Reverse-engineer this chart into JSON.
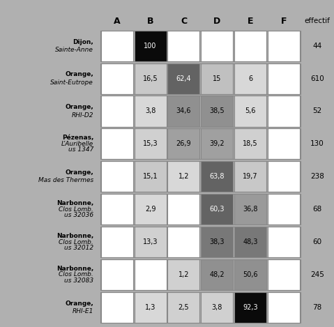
{
  "columns": [
    "A",
    "B",
    "C",
    "D",
    "E",
    "F"
  ],
  "rows": [
    {
      "label_line1": "Dijon,",
      "label_line2": "Sainte-Anne",
      "label_italic": true,
      "effectif": "44",
      "values": [
        null,
        100,
        null,
        null,
        null,
        null
      ],
      "colors": [
        "white",
        "#0a0a0a",
        "white",
        "white",
        "white",
        "white"
      ],
      "text_colors": [
        "black",
        "white",
        "black",
        "black",
        "black",
        "black"
      ]
    },
    {
      "label_line1": "Orange,",
      "label_line2": "Saint-Eutrope",
      "label_italic": true,
      "effectif": "610",
      "values": [
        null,
        "16,5",
        "62,4",
        "15",
        "6",
        null
      ],
      "colors": [
        "white",
        "#c8c8c8",
        "#636363",
        "#c0c0c0",
        "#d8d8d8",
        "white"
      ],
      "text_colors": [
        "black",
        "black",
        "white",
        "black",
        "black",
        "black"
      ]
    },
    {
      "label_line1": "Orange,",
      "label_line2": "RHI-D2",
      "label_italic": true,
      "effectif": "52",
      "values": [
        null,
        "3,8",
        "34,6",
        "38,5",
        "5,6",
        null
      ],
      "colors": [
        "white",
        "#d8d8d8",
        "#909090",
        "#909090",
        "#d8d8d8",
        "white"
      ],
      "text_colors": [
        "black",
        "black",
        "black",
        "black",
        "black",
        "black"
      ]
    },
    {
      "label_line1": "Pézenas,",
      "label_line2": "L’Auribelle",
      "label_line3": "us 1347",
      "label_italic": true,
      "effectif": "130",
      "values": [
        null,
        "15,3",
        "26,9",
        "39,2",
        "18,5",
        null
      ],
      "colors": [
        "white",
        "#d0d0d0",
        "#a0a0a0",
        "#a0a0a0",
        "#d0d0d0",
        "white"
      ],
      "text_colors": [
        "black",
        "black",
        "black",
        "black",
        "black",
        "black"
      ]
    },
    {
      "label_line1": "Orange,",
      "label_line2": "Mas des Thermes",
      "label_italic": true,
      "effectif": "238",
      "values": [
        null,
        "15,1",
        "1,2",
        "63,8",
        "19,7",
        null
      ],
      "colors": [
        "white",
        "#c8c8c8",
        "#d8d8d8",
        "#636363",
        "#c8c8c8",
        "white"
      ],
      "text_colors": [
        "black",
        "black",
        "black",
        "white",
        "black",
        "black"
      ]
    },
    {
      "label_line1": "Narbonne,",
      "label_line2": "Clos Lomb.",
      "label_line3": "us 32036",
      "label_italic": true,
      "effectif": "68",
      "values": [
        null,
        "2,9",
        null,
        "60,3",
        "36,8",
        null
      ],
      "colors": [
        "white",
        "#d8d8d8",
        "white",
        "#636363",
        "#9a9a9a",
        "white"
      ],
      "text_colors": [
        "black",
        "black",
        "black",
        "white",
        "black",
        "black"
      ]
    },
    {
      "label_line1": "Narbonne,",
      "label_line2": "Clos Lomb.",
      "label_line3": "us 32012",
      "label_italic": true,
      "effectif": "60",
      "values": [
        null,
        "13,3",
        null,
        "38,3",
        "48,3",
        null
      ],
      "colors": [
        "white",
        "#d0d0d0",
        "white",
        "#787878",
        "#787878",
        "white"
      ],
      "text_colors": [
        "black",
        "black",
        "black",
        "black",
        "black",
        "black"
      ]
    },
    {
      "label_line1": "Narbonne,",
      "label_line2": "Clos Lomb.",
      "label_line3": "us 32083",
      "label_italic": true,
      "effectif": "245",
      "values": [
        null,
        null,
        "1,2",
        "48,2",
        "50,6",
        null
      ],
      "colors": [
        "white",
        "white",
        "#d0d0d0",
        "#909090",
        "#909090",
        "white"
      ],
      "text_colors": [
        "black",
        "black",
        "black",
        "black",
        "black",
        "black"
      ]
    },
    {
      "label_line1": "Orange,",
      "label_line2": "RHI-E1",
      "label_italic": true,
      "effectif": "78",
      "values": [
        null,
        "1,3",
        "2,5",
        "3,8",
        "92,3",
        null
      ],
      "colors": [
        "white",
        "#d8d8d8",
        "#d0d0d0",
        "#d0d0d0",
        "#0a0a0a",
        "white"
      ],
      "text_colors": [
        "black",
        "black",
        "black",
        "black",
        "white",
        "black"
      ]
    }
  ],
  "bg_color": "#b0b0b0",
  "header_bg": "#b0b0b0",
  "cell_border_color": "#888888",
  "figure_bg": "#b0b0b0"
}
